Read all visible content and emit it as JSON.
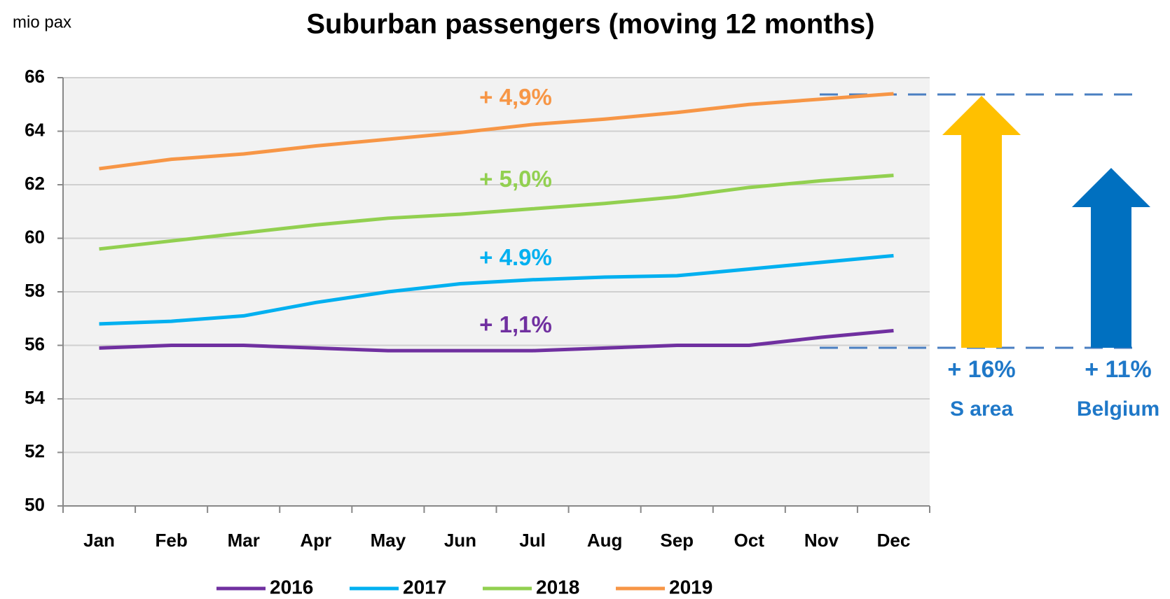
{
  "chart_data": {
    "type": "line",
    "title": "Suburban passengers (moving 12 months)",
    "ylabel": "mio pax",
    "categories": [
      "Jan",
      "Feb",
      "Mar",
      "Apr",
      "May",
      "Jun",
      "Jul",
      "Aug",
      "Sep",
      "Oct",
      "Nov",
      "Dec"
    ],
    "ylim": [
      50,
      66
    ],
    "yticks": [
      50,
      52,
      54,
      56,
      58,
      60,
      62,
      64,
      66
    ],
    "grid": true,
    "legend": "bottom",
    "series": [
      {
        "name": "2016",
        "color": "#7030a0",
        "change_label": "+ 1,1%",
        "values": [
          55.9,
          56.0,
          56.0,
          55.9,
          55.8,
          55.8,
          55.8,
          55.9,
          56.0,
          56.0,
          56.3,
          56.55
        ]
      },
      {
        "name": "2017",
        "color": "#00b0f0",
        "change_label": "+ 4.9%",
        "values": [
          56.8,
          56.9,
          57.1,
          57.6,
          58.0,
          58.3,
          58.45,
          58.55,
          58.6,
          58.85,
          59.1,
          59.35
        ]
      },
      {
        "name": "2018",
        "color": "#92d050",
        "change_label": "+ 5,0%",
        "values": [
          59.6,
          59.9,
          60.2,
          60.5,
          60.75,
          60.9,
          61.1,
          61.3,
          61.55,
          61.9,
          62.15,
          62.35
        ]
      },
      {
        "name": "2019",
        "color": "#f79646",
        "change_label": "+ 4,9%",
        "values": [
          62.6,
          62.95,
          63.15,
          63.45,
          63.7,
          63.95,
          64.25,
          64.45,
          64.7,
          65.0,
          65.2,
          65.4
        ]
      }
    ],
    "callouts": [
      {
        "value": "+ 16%",
        "label": "S area"
      },
      {
        "value": "+ 11%",
        "label": "Belgium"
      }
    ]
  }
}
